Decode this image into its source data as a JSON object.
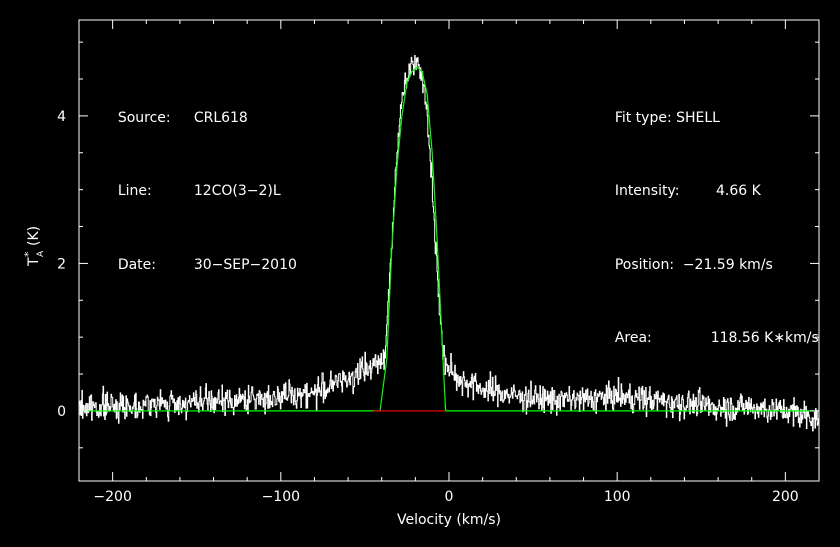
{
  "chart_data": {
    "type": "line",
    "xlabel": "Velocity (km/s)",
    "ylabel_main": "T",
    "ylabel_sup": "*",
    "ylabel_sub": "A",
    "ylabel_unit": "(K)",
    "xlim": [
      -220,
      220
    ],
    "ylim": [
      -0.95,
      5.3
    ],
    "x_ticks": [
      -200,
      -100,
      0,
      100,
      200
    ],
    "x_tick_labels": [
      "−200",
      "−100",
      "0",
      "100",
      "200"
    ],
    "y_ticks": [
      0,
      2,
      4
    ],
    "y_tick_labels": [
      "0",
      "2",
      "4"
    ],
    "channel_step_kms": 0.34,
    "series": [
      {
        "name": "spectrum",
        "role": "data",
        "shape_points_x": [
          -220,
          -160,
          -120,
          -80,
          -60,
          -50,
          -42,
          -38,
          -34,
          -30,
          -27,
          -24,
          -21,
          -19,
          -17,
          -14,
          -11,
          -8,
          -4,
          -2,
          0,
          5,
          20,
          40,
          60,
          80,
          100,
          120,
          140,
          160,
          180,
          200,
          220
        ],
        "shape_points_y": [
          0.05,
          0.1,
          0.15,
          0.25,
          0.45,
          0.55,
          0.65,
          0.8,
          2.4,
          3.8,
          4.45,
          4.6,
          4.75,
          4.8,
          4.65,
          4.2,
          3.4,
          2.2,
          0.8,
          0.65,
          0.55,
          0.45,
          0.3,
          0.2,
          0.15,
          0.15,
          0.2,
          0.15,
          0.1,
          0.05,
          0.05,
          0.0,
          -0.1
        ],
        "noise_rms_K": 0.17,
        "color": "#ffffff"
      },
      {
        "name": "fit",
        "role": "model",
        "shape_points_x": [
          -220,
          -41,
          -37,
          -34,
          -31,
          -28,
          -25,
          -22,
          -19,
          -16,
          -13,
          -10,
          -7,
          -4,
          -2,
          220
        ],
        "shape_points_y": [
          0,
          0,
          0.7,
          2.2,
          3.3,
          4.0,
          4.45,
          4.6,
          4.66,
          4.6,
          4.3,
          3.5,
          2.3,
          0.9,
          0,
          0
        ],
        "color": "#00ff00"
      },
      {
        "name": "fit-range",
        "role": "marker",
        "x": [
          -45,
          -2
        ],
        "y": [
          0,
          0
        ],
        "color": "#ff0000"
      }
    ],
    "info_left": [
      {
        "label": "Source:",
        "value": "CRL618"
      },
      {
        "label": "Line:",
        "value": "12CO(3−2)L"
      },
      {
        "label": "Date:",
        "value": "30−SEP−2010"
      }
    ],
    "info_right": [
      {
        "label": "Fit type:",
        "value": "SHELL"
      },
      {
        "label": "Intensity:",
        "value": "4.66 K"
      },
      {
        "label": "Position:",
        "value": "−21.59 km/s"
      },
      {
        "label": "Area:",
        "value": "118.56 K∗km/s"
      }
    ],
    "colors": {
      "background": "#000000",
      "axes": "#ffffff",
      "data": "#ffffff",
      "fit": "#00ff00",
      "marker": "#ff0000"
    }
  }
}
